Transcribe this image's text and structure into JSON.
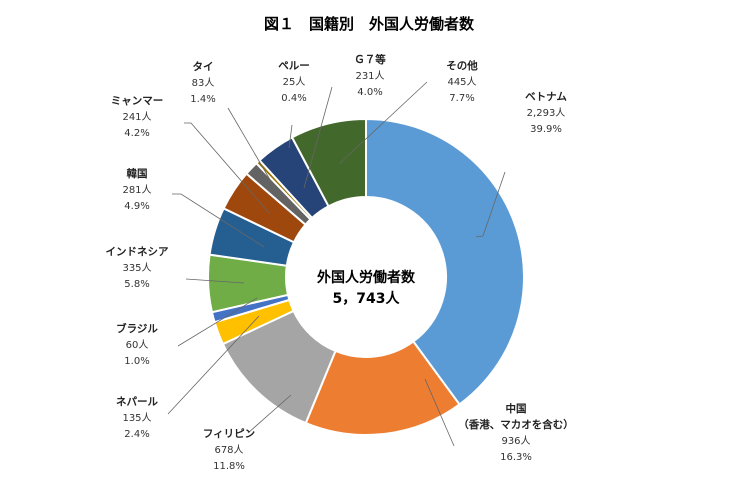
{
  "chart_data": {
    "type": "pie",
    "title": "図１　国籍別　外国人労働者数",
    "center_label": "外国人労働者数",
    "center_value": "5，743人",
    "unit": "人",
    "slices": [
      {
        "name": "ベトナム",
        "value_text": "2,293人",
        "pct_text": "39.9%",
        "value": 2293,
        "color": "#5b9bd5"
      },
      {
        "name": "中国",
        "name2": "（香港、マカオを含む）",
        "value_text": "936人",
        "pct_text": "16.3%",
        "value": 936,
        "color": "#ed7d31"
      },
      {
        "name": "フィリピン",
        "value_text": "678人",
        "pct_text": "11.8%",
        "value": 678,
        "color": "#a5a5a5"
      },
      {
        "name": "ネパール",
        "value_text": "135人",
        "pct_text": "2.4%",
        "value": 135,
        "color": "#ffc000"
      },
      {
        "name": "ブラジル",
        "value_text": "60人",
        "pct_text": "1.0%",
        "value": 60,
        "color": "#4472c4"
      },
      {
        "name": "インドネシア",
        "value_text": "335人",
        "pct_text": "5.8%",
        "value": 335,
        "color": "#70ad47"
      },
      {
        "name": "韓国",
        "value_text": "281人",
        "pct_text": "4.9%",
        "value": 281,
        "color": "#255e91"
      },
      {
        "name": "ミャンマー",
        "value_text": "241人",
        "pct_text": "4.2%",
        "value": 241,
        "color": "#9e480e"
      },
      {
        "name": "タイ",
        "value_text": "83人",
        "pct_text": "1.4%",
        "value": 83,
        "color": "#636363"
      },
      {
        "name": "ペルー",
        "value_text": "25人",
        "pct_text": "0.4%",
        "value": 25,
        "color": "#997300"
      },
      {
        "name": "Ｇ７等",
        "value_text": "231人",
        "pct_text": "4.0%",
        "value": 231,
        "color": "#264478"
      },
      {
        "name": "その他",
        "value_text": "445人",
        "pct_text": "7.7%",
        "value": 445,
        "color": "#43682b"
      }
    ]
  }
}
